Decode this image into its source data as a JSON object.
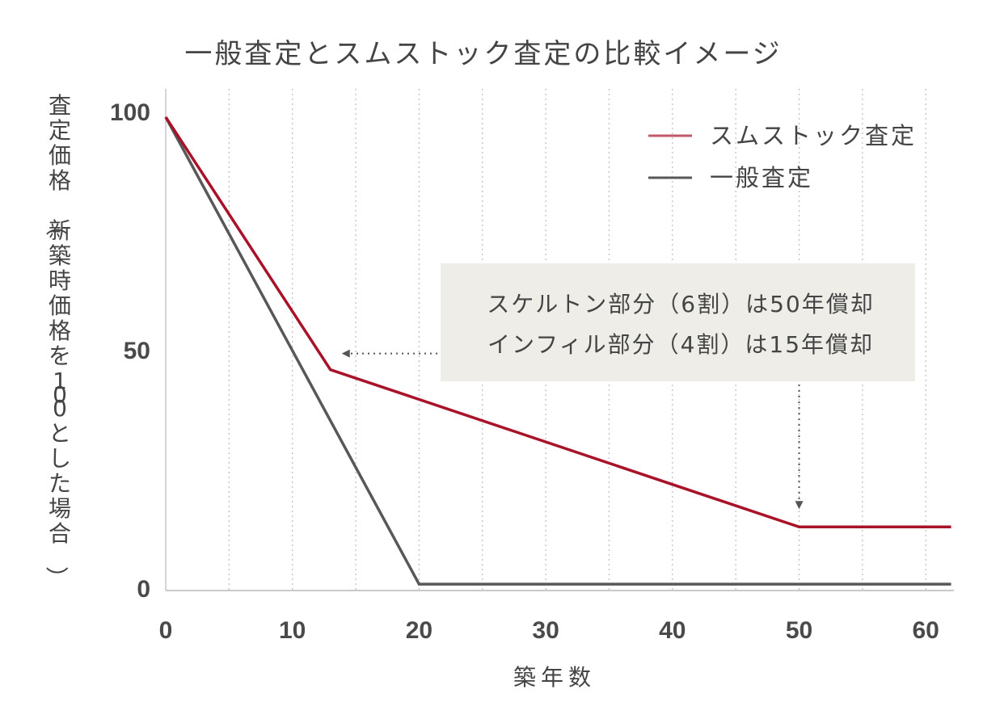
{
  "chart_data": {
    "type": "line",
    "title": "一般査定とスムストック査定の比較イメージ",
    "xlabel": "築年数",
    "ylabel": "査定価格（新築時価格を100とした場合）",
    "xlim": [
      0,
      62
    ],
    "ylim": [
      0,
      100
    ],
    "xticks": [
      0,
      10,
      20,
      30,
      40,
      50,
      60
    ],
    "xtick_labels": [
      "0",
      "10",
      "20",
      "30",
      "40",
      "50",
      "60"
    ],
    "yticks": [
      0,
      50,
      100
    ],
    "ytick_labels": [
      "0",
      "50",
      "100"
    ],
    "minor_grid_step": 5,
    "grid": "vertical-dotted",
    "legend_position": "top-right",
    "series": [
      {
        "name": "スムストック査定",
        "color": "#a8132a",
        "legend_color": "#c25a68",
        "points": [
          [
            0,
            99
          ],
          [
            13,
            46
          ],
          [
            50,
            13
          ],
          [
            62,
            13
          ]
        ]
      },
      {
        "name": "一般査定",
        "color": "#58585a",
        "legend_color": "#58585a",
        "points": [
          [
            0,
            99
          ],
          [
            20,
            1
          ],
          [
            62,
            1
          ]
        ]
      }
    ],
    "annotation": {
      "lines": [
        "スケルトン部分（6割）は50年償却",
        "インフィル部分（4割）は15年償却"
      ],
      "background": "#eeede8",
      "arrow_color": "#555555",
      "arrows": [
        {
          "direction": "left",
          "target": [
            13,
            46
          ]
        },
        {
          "direction": "down",
          "target": [
            50,
            13
          ]
        }
      ]
    }
  }
}
